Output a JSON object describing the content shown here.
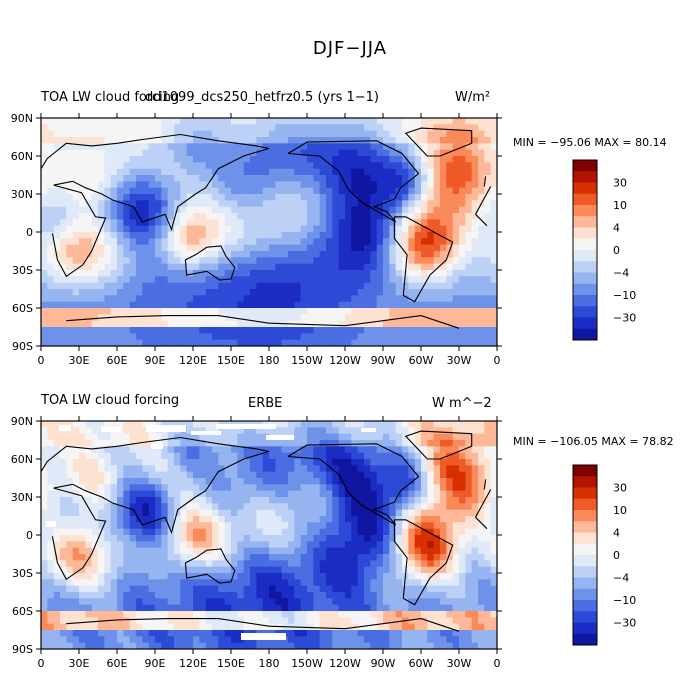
{
  "figure": {
    "title": "DJF−JJA"
  },
  "panels": [
    {
      "left_title": "TOA LW cloud forcing",
      "center_title": "dd1099_dcs250_hetfrz0.5 (yrs 1−1)",
      "units": "W/m²",
      "stats": "MIN = −95.06  MAX =  80.14"
    },
    {
      "left_title": "TOA LW cloud forcing",
      "center_title": "ERBE",
      "units": "W m^−2",
      "stats": "MIN = −106.05  MAX =  78.82"
    }
  ],
  "axes": {
    "lat_labels": [
      "90N",
      "60N",
      "30N",
      "0",
      "30S",
      "60S",
      "90S"
    ],
    "lon_labels": [
      "0",
      "30E",
      "60E",
      "90E",
      "120E",
      "150E",
      "180",
      "150W",
      "120W",
      "90W",
      "60W",
      "30W",
      "0"
    ]
  },
  "colorbar": {
    "labels": [
      "30",
      "10",
      "4",
      "0",
      "−4",
      "−10",
      "−30"
    ],
    "colors": [
      "#7f0000",
      "#b11500",
      "#d73000",
      "#ef5a28",
      "#fa8a5a",
      "#fdb898",
      "#fde2d2",
      "#f5f5f5",
      "#dfe9f8",
      "#bcd1f5",
      "#95b4f0",
      "#6e92ea",
      "#4a6de2",
      "#2c4ad6",
      "#1a2cc4",
      "#10169f"
    ]
  }
}
